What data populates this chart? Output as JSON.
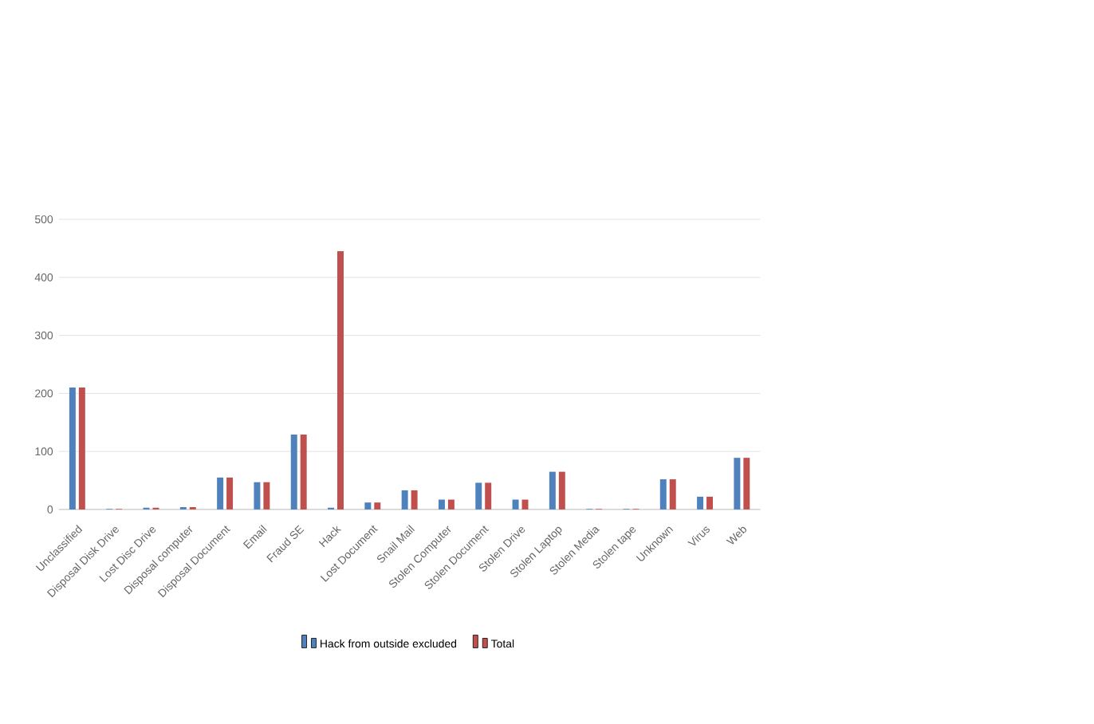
{
  "chart_data": {
    "type": "bar",
    "categories": [
      "Unclassified",
      "Disposal Disk Drive",
      "Lost Disc Drive",
      "Disposal computer",
      "Disposal Document",
      "Email",
      "Fraud SE",
      "Hack",
      "Lost Document",
      "Snail Mail",
      "Stolen Computer",
      "Stolen Document",
      "Stolen Drive",
      "Stolen Laptop",
      "Stolen Media",
      "Stolen tape",
      "Unknown",
      "Virus",
      "Web"
    ],
    "series": [
      {
        "name": "Hack from outside excluded",
        "color": "#4f81bd",
        "values": [
          210,
          1,
          3,
          4,
          55,
          47,
          129,
          3,
          12,
          33,
          17,
          46,
          17,
          65,
          1,
          1,
          52,
          22,
          89
        ]
      },
      {
        "name": "Total",
        "color": "#c0504d",
        "values": [
          210,
          1,
          3,
          4,
          55,
          47,
          129,
          445,
          12,
          33,
          17,
          46,
          17,
          65,
          1,
          1,
          52,
          22,
          89
        ]
      }
    ],
    "ylim": [
      0,
      500
    ],
    "yticks": [
      0,
      100,
      200,
      300,
      400,
      500
    ],
    "grid": "y",
    "legend": "bottom"
  }
}
